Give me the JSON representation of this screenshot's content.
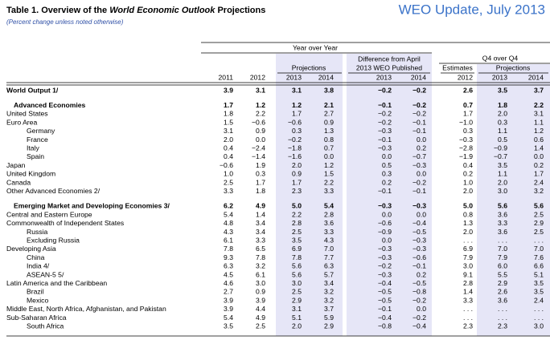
{
  "header": {
    "title": {
      "prefix": "Table 1. Overview of the",
      "emphasis": "World Economic Outlook",
      "suffix": "Projections"
    },
    "edition": "WEO Update, July 2013",
    "subtitle": "(Percent change unless noted otherwise)"
  },
  "table": {
    "groups": {
      "year_over_year": "Year over Year",
      "projections": "Projections",
      "difference": [
        "Difference from April",
        "2013 WEO Published"
      ],
      "q4": "Q4 over Q4",
      "estimates": "Estimates",
      "q4_projections": "Projections"
    },
    "years": [
      "2011",
      "2012",
      "2013",
      "2014",
      "2013",
      "2014",
      "2012",
      "2013",
      "2014"
    ],
    "rows": [
      {
        "label": "World Output 1/",
        "level": 0,
        "bold": true,
        "values": [
          "3.9",
          "3.1",
          "3.1",
          "3.8",
          "−0.2",
          "−0.2",
          "2.6",
          "3.5",
          "3.7"
        ]
      },
      {
        "label": "Advanced Economies",
        "level": 1,
        "bold": true,
        "values": [
          "1.7",
          "1.2",
          "1.2",
          "2.1",
          "−0.1",
          "−0.2",
          "0.7",
          "1.8",
          "2.2"
        ]
      },
      {
        "label": "United States",
        "level": 0,
        "bold": false,
        "values": [
          "1.8",
          "2.2",
          "1.7",
          "2.7",
          "−0.2",
          "−0.2",
          "1.7",
          "2.0",
          "3.1"
        ]
      },
      {
        "label": "Euro Area",
        "level": 0,
        "bold": false,
        "values": [
          "1.5",
          "−0.6",
          "−0.6",
          "0.9",
          "−0.2",
          "−0.1",
          "−1.0",
          "0.3",
          "1.1"
        ]
      },
      {
        "label": "Germany",
        "level": 2,
        "bold": false,
        "values": [
          "3.1",
          "0.9",
          "0.3",
          "1.3",
          "−0.3",
          "−0.1",
          "0.3",
          "1.1",
          "1.2"
        ]
      },
      {
        "label": "France",
        "level": 2,
        "bold": false,
        "values": [
          "2.0",
          "0.0",
          "−0.2",
          "0.8",
          "−0.1",
          "0.0",
          "−0.3",
          "0.5",
          "0.6"
        ]
      },
      {
        "label": "Italy",
        "level": 2,
        "bold": false,
        "values": [
          "0.4",
          "−2.4",
          "−1.8",
          "0.7",
          "−0.3",
          "0.2",
          "−2.8",
          "−0.9",
          "1.4"
        ]
      },
      {
        "label": "Spain",
        "level": 2,
        "bold": false,
        "values": [
          "0.4",
          "−1.4",
          "−1.6",
          "0.0",
          "0.0",
          "−0.7",
          "−1.9",
          "−0.7",
          "0.0"
        ]
      },
      {
        "label": "Japan",
        "level": 0,
        "bold": false,
        "values": [
          "−0.6",
          "1.9",
          "2.0",
          "1.2",
          "0.5",
          "−0.3",
          "0.4",
          "3.5",
          "0.2"
        ]
      },
      {
        "label": "United Kingdom",
        "level": 0,
        "bold": false,
        "values": [
          "1.0",
          "0.3",
          "0.9",
          "1.5",
          "0.3",
          "0.0",
          "0.2",
          "1.1",
          "1.7"
        ]
      },
      {
        "label": "Canada",
        "level": 0,
        "bold": false,
        "values": [
          "2.5",
          "1.7",
          "1.7",
          "2.2",
          "0.2",
          "−0.2",
          "1.0",
          "2.0",
          "2.4"
        ]
      },
      {
        "label": "Other Advanced Economies 2/",
        "level": 0,
        "bold": false,
        "values": [
          "3.3",
          "1.8",
          "2.3",
          "3.3",
          "−0.1",
          "−0.1",
          "2.0",
          "3.0",
          "3.2"
        ]
      },
      {
        "label": "Emerging Market and Developing Economies 3/",
        "level": 1,
        "bold": true,
        "values": [
          "6.2",
          "4.9",
          "5.0",
          "5.4",
          "−0.3",
          "−0.3",
          "5.0",
          "5.6",
          "5.6"
        ]
      },
      {
        "label": "Central and Eastern Europe",
        "level": 0,
        "bold": false,
        "values": [
          "5.4",
          "1.4",
          "2.2",
          "2.8",
          "0.0",
          "0.0",
          "0.8",
          "3.6",
          "2.5"
        ]
      },
      {
        "label": "Commonwealth of Independent States",
        "level": 0,
        "bold": false,
        "values": [
          "4.8",
          "3.4",
          "2.8",
          "3.6",
          "−0.6",
          "−0.4",
          "1.3",
          "3.3",
          "2.9"
        ]
      },
      {
        "label": "Russia",
        "level": 2,
        "bold": false,
        "values": [
          "4.3",
          "3.4",
          "2.5",
          "3.3",
          "−0.9",
          "−0.5",
          "2.0",
          "3.6",
          "2.5"
        ]
      },
      {
        "label": "Excluding Russia",
        "level": 2,
        "bold": false,
        "values": [
          "6.1",
          "3.3",
          "3.5",
          "4.3",
          "0.0",
          "−0.3",
          ". . .",
          ". . .",
          ". . ."
        ]
      },
      {
        "label": "Developing Asia",
        "level": 0,
        "bold": false,
        "values": [
          "7.8",
          "6.5",
          "6.9",
          "7.0",
          "−0.3",
          "−0.3",
          "6.9",
          "7.0",
          "7.0"
        ]
      },
      {
        "label": "China",
        "level": 2,
        "bold": false,
        "values": [
          "9.3",
          "7.8",
          "7.8",
          "7.7",
          "−0.3",
          "−0.6",
          "7.9",
          "7.9",
          "7.6"
        ]
      },
      {
        "label": "India 4/",
        "level": 2,
        "bold": false,
        "values": [
          "6.3",
          "3.2",
          "5.6",
          "6.3",
          "−0.2",
          "−0.1",
          "3.0",
          "6.0",
          "6.6"
        ]
      },
      {
        "label": "ASEAN-5 5/",
        "level": 2,
        "bold": false,
        "values": [
          "4.5",
          "6.1",
          "5.6",
          "5.7",
          "−0.3",
          "0.2",
          "9.1",
          "5.5",
          "5.1"
        ]
      },
      {
        "label": "Latin America and the Caribbean",
        "level": 0,
        "bold": false,
        "values": [
          "4.6",
          "3.0",
          "3.0",
          "3.4",
          "−0.4",
          "−0.5",
          "2.8",
          "2.9",
          "3.5"
        ]
      },
      {
        "label": "Brazil",
        "level": 2,
        "bold": false,
        "values": [
          "2.7",
          "0.9",
          "2.5",
          "3.2",
          "−0.5",
          "−0.8",
          "1.4",
          "2.6",
          "3.5"
        ]
      },
      {
        "label": "Mexico",
        "level": 2,
        "bold": false,
        "values": [
          "3.9",
          "3.9",
          "2.9",
          "3.2",
          "−0.5",
          "−0.2",
          "3.3",
          "3.6",
          "2.4"
        ]
      },
      {
        "label": "Middle East, North Africa, Afghanistan, and Pakistan",
        "level": 0,
        "bold": false,
        "values": [
          "3.9",
          "4.4",
          "3.1",
          "3.7",
          "−0.1",
          "0.0",
          ". . .",
          ". . .",
          ". . ."
        ]
      },
      {
        "label": "Sub-Saharan Africa",
        "level": 0,
        "bold": false,
        "values": [
          "5.4",
          "4.9",
          "5.1",
          "5.9",
          "−0.4",
          "−0.2",
          ". . .",
          ". . .",
          ". . ."
        ]
      },
      {
        "label": "South Africa",
        "level": 2,
        "bold": false,
        "values": [
          "3.5",
          "2.5",
          "2.0",
          "2.9",
          "−0.8",
          "−0.4",
          "2.3",
          "2.3",
          "3.0"
        ]
      }
    ]
  }
}
